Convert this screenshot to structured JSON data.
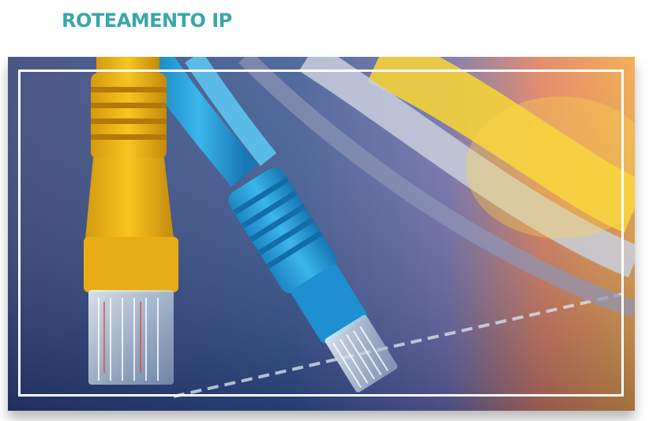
{
  "page": {
    "heading": "ROTEAMENTO IP"
  },
  "hero": {
    "icon": "network-cables-image",
    "colors": {
      "accent": "#3aa6a8",
      "yellow_cable": "#f3c01a",
      "blue_cable": "#2aa7dc",
      "background_dark": "#24315f"
    }
  }
}
